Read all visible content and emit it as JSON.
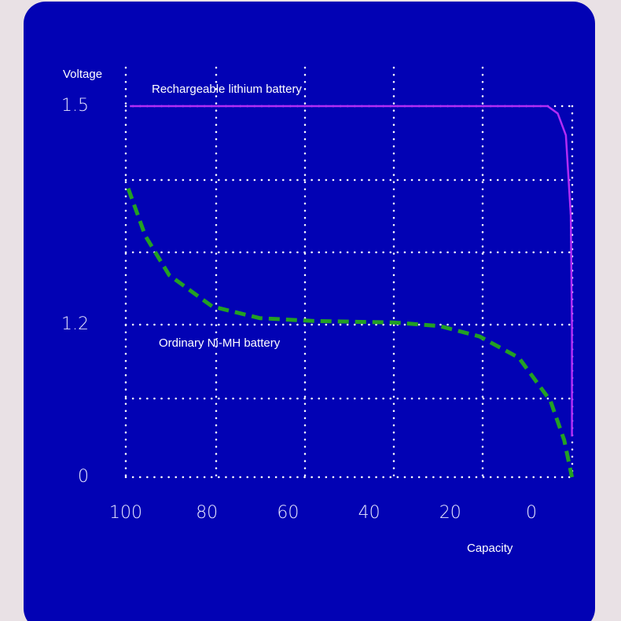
{
  "chart_data": {
    "type": "line",
    "y_label": "Voltage",
    "x_label": "Capacity",
    "xlim": [
      100,
      -10
    ],
    "xticks": [
      100,
      80,
      60,
      40,
      20,
      0
    ],
    "ylim": [
      0,
      1.5
    ],
    "yticks": [
      0,
      1.2,
      1.5
    ],
    "grid": true,
    "series": [
      {
        "name": "Rechargeable lithium battery",
        "color": "#b22cf5",
        "style": "solid",
        "x": [
          99,
          -4,
          -6.5,
          -8.5,
          -9.7,
          -10,
          -10
        ],
        "values": [
          1.5,
          1.5,
          1.49,
          1.46,
          1.35,
          1.2,
          0.32
        ]
      },
      {
        "name": "Ordinary Ni-MH battery",
        "color": "#23a024",
        "style": "dashed",
        "x": [
          99.4,
          95.2,
          89.3,
          78.7,
          67,
          53.5,
          34,
          22.5,
          12.8,
          3.1,
          -4.7,
          -8.1,
          -10
        ],
        "values": [
          1.387,
          1.322,
          1.268,
          1.225,
          1.209,
          1.205,
          1.203,
          1.188,
          1.107,
          0.94,
          0.6,
          0.29,
          0
        ]
      }
    ]
  }
}
